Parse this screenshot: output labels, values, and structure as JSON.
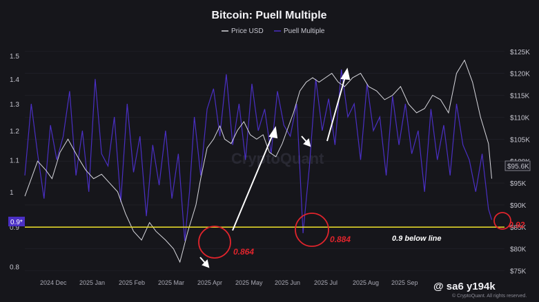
{
  "title": "Bitcoin: Puell Multiple",
  "legend": [
    {
      "label": "Price USD",
      "color": "#d8d8de"
    },
    {
      "label": "Puell Multiple",
      "color": "#4a2fc4"
    }
  ],
  "left_axis_badge": "0.9*",
  "right_axis_badge": "$95.6K",
  "annotations": {
    "low1": "0.864",
    "low2": "0.884",
    "current": "0.92",
    "line_note": "0.9 below line"
  },
  "watermark": {
    "handle": "@ sa6 y194k",
    "source": "© CryptoQuant. All rights reserved.",
    "ghost": "CryptoQuant"
  },
  "colors": {
    "background": "#16161b",
    "price": "#d8d8de",
    "puell": "#4a2fc4",
    "threshold": "#e2d52a",
    "annotation": "#e0242c"
  },
  "chart_data": {
    "type": "line",
    "title": "Bitcoin: Puell Multiple",
    "x_ticks": [
      "2024 Dec",
      "2025 Jan",
      "2025 Feb",
      "2025 Mar",
      "2025 Apr",
      "2025 May",
      "2025 Jun",
      "2025 Jul",
      "2025 Aug",
      "2025 Sep"
    ],
    "y_left": {
      "ticks": [
        0.8,
        0.9,
        1,
        1.1,
        1.2,
        1.3,
        1.4,
        1.5
      ],
      "scale": "log",
      "range": [
        0.78,
        1.56
      ]
    },
    "y_right": {
      "ticks": [
        "$75K",
        "$80K",
        "$85K",
        "$90K",
        "$95K",
        "$100K",
        "$105K",
        "$110K",
        "$115K",
        "$120K",
        "$125K"
      ],
      "range": [
        74,
        127
      ]
    },
    "threshold": 0.9,
    "series": [
      {
        "name": "Price USD",
        "axis": "right",
        "x": [
          0,
          3,
          8,
          13,
          17,
          22,
          27,
          33,
          38,
          43,
          48,
          53,
          58,
          63,
          68,
          73,
          78,
          82,
          88,
          93,
          97,
          102,
          107,
          110,
          114,
          118,
          122,
          125,
          129,
          133,
          137,
          141,
          145,
          149,
          153,
          157,
          161,
          164,
          168,
          172,
          176,
          180,
          184,
          188,
          192,
          196,
          200,
          205,
          210,
          215,
          220,
          225,
          230,
          235,
          240,
          245,
          250,
          255,
          260,
          265,
          270,
          275,
          280,
          285,
          290,
          292
        ],
        "values": [
          92,
          95,
          100,
          98,
          96,
          102,
          105,
          101,
          98,
          96,
          97,
          95,
          93,
          88,
          84,
          82,
          86,
          84,
          82,
          80,
          77,
          84,
          90,
          96,
          103,
          105,
          108,
          105,
          104,
          107,
          109,
          106,
          105,
          106,
          102,
          101,
          104,
          107,
          111,
          116,
          118,
          119,
          118,
          119,
          120,
          118,
          117,
          119,
          120,
          117,
          116,
          114,
          115,
          117,
          113,
          111,
          112,
          115,
          114,
          111,
          120,
          123,
          118,
          110,
          104,
          96
        ]
      },
      {
        "name": "Puell Multiple",
        "axis": "left",
        "x": [
          0,
          4,
          8,
          12,
          16,
          20,
          24,
          28,
          32,
          36,
          40,
          44,
          48,
          52,
          56,
          60,
          64,
          68,
          72,
          76,
          80,
          84,
          88,
          92,
          96,
          100,
          103,
          106,
          110,
          114,
          118,
          122,
          126,
          130,
          134,
          138,
          142,
          146,
          150,
          154,
          158,
          162,
          166,
          170,
          174,
          178,
          182,
          186,
          190,
          194,
          198,
          202,
          206,
          210,
          214,
          218,
          222,
          226,
          230,
          234,
          238,
          242,
          246,
          250,
          254,
          258,
          262,
          266,
          270,
          274,
          278,
          282,
          286,
          290,
          292
        ],
        "values": [
          1.05,
          1.3,
          1.12,
          0.98,
          1.22,
          1.1,
          1.18,
          1.35,
          1.05,
          1.2,
          1.0,
          1.4,
          1.12,
          1.08,
          1.25,
          0.97,
          1.3,
          1.06,
          1.18,
          0.93,
          1.15,
          1.02,
          1.2,
          0.98,
          1.12,
          0.864,
          1.0,
          1.25,
          1.05,
          1.28,
          1.36,
          1.18,
          1.42,
          1.15,
          1.3,
          1.1,
          1.38,
          1.2,
          1.28,
          1.12,
          1.35,
          1.22,
          1.18,
          1.3,
          0.884,
          1.08,
          1.4,
          1.2,
          1.32,
          1.15,
          1.44,
          1.25,
          1.3,
          1.1,
          1.38,
          1.2,
          1.25,
          1.05,
          1.33,
          1.15,
          1.3,
          1.12,
          1.2,
          1.0,
          1.28,
          1.1,
          1.22,
          1.05,
          1.3,
          1.15,
          1.1,
          1.0,
          1.12,
          0.95,
          0.92
        ]
      }
    ]
  }
}
